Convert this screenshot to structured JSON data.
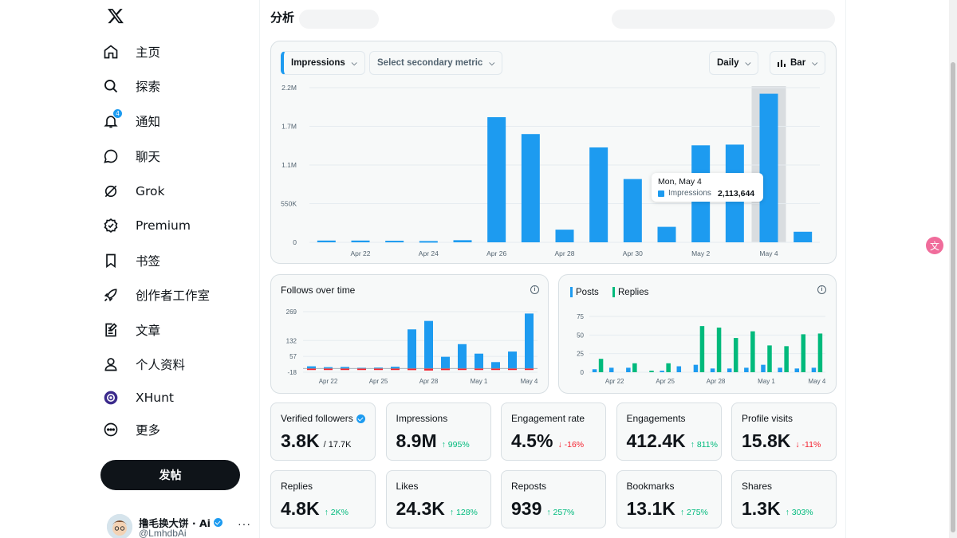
{
  "nav": {
    "items": [
      {
        "label": "主页",
        "icon": "home-icon"
      },
      {
        "label": "探索",
        "icon": "search-icon"
      },
      {
        "label": "通知",
        "icon": "bell-icon",
        "badge": "4"
      },
      {
        "label": "聊天",
        "icon": "chat-icon"
      },
      {
        "label": "Grok",
        "icon": "grok-icon"
      },
      {
        "label": "Premium",
        "icon": "premium-icon"
      },
      {
        "label": "书签",
        "icon": "bookmark-icon"
      },
      {
        "label": "创作者工作室",
        "icon": "rocket-icon"
      },
      {
        "label": "文章",
        "icon": "article-icon"
      },
      {
        "label": "个人资料",
        "icon": "person-icon"
      },
      {
        "label": "XHunt",
        "icon": "xhunt-icon"
      },
      {
        "label": "更多",
        "icon": "more-icon"
      }
    ],
    "post_label": "发帖"
  },
  "account": {
    "name": "撸毛换大饼 · Ai",
    "handle": "@LmhdbAi"
  },
  "page": {
    "title": "分析"
  },
  "controls": {
    "primary_metric": "Impressions",
    "secondary_placeholder": "Select secondary metric",
    "interval": "Daily",
    "chart_type": "Bar"
  },
  "tooltip": {
    "date": "Mon, May 4",
    "label": "Impressions",
    "value": "2,113,644"
  },
  "follows": {
    "title": "Follows over time"
  },
  "posts_replies": {
    "legend_posts": "Posts",
    "legend_replies": "Replies"
  },
  "colors": {
    "blue": "#1d9bf0",
    "green": "#00ba7c",
    "red": "#f4212e"
  },
  "chart_data": [
    {
      "type": "bar",
      "title": "Impressions",
      "x": [
        "Apr 21",
        "Apr 22",
        "Apr 23",
        "Apr 24",
        "Apr 25",
        "Apr 26",
        "Apr 27",
        "Apr 28",
        "Apr 29",
        "Apr 30",
        "May 1",
        "May 2",
        "May 3",
        "May 4",
        "May 5"
      ],
      "values": [
        25000,
        25000,
        22000,
        18000,
        30000,
        1780000,
        1540000,
        180000,
        1350000,
        900000,
        220000,
        1380000,
        1390000,
        2113644,
        150000
      ],
      "tick_labels_x": [
        "Apr 22",
        "Apr 24",
        "Apr 26",
        "Apr 28",
        "Apr 30",
        "May 2",
        "May 4"
      ],
      "tick_labels_y": [
        "0",
        "550K",
        "1.1M",
        "1.7M",
        "2.2M"
      ],
      "ylim": [
        0,
        2200000
      ],
      "highlight": "May 4",
      "grid": true
    },
    {
      "type": "bar",
      "title": "Follows over time",
      "x": [
        "Apr 21",
        "Apr 22",
        "Apr 23",
        "Apr 24",
        "Apr 25",
        "Apr 26",
        "Apr 27",
        "Apr 28",
        "Apr 29",
        "Apr 30",
        "May 1",
        "May 2",
        "May 3",
        "May 4"
      ],
      "series": [
        {
          "name": "gained",
          "values": [
            10,
            6,
            7,
            3,
            4,
            8,
            185,
            225,
            55,
            115,
            70,
            30,
            80,
            260
          ]
        },
        {
          "name": "lost",
          "values": [
            -6,
            -5,
            -5,
            -4,
            -4,
            -5,
            -8,
            -10,
            -8,
            -7,
            -6,
            -5,
            -6,
            -7
          ]
        }
      ],
      "tick_labels_x": [
        "Apr 22",
        "Apr 25",
        "Apr 28",
        "May 1",
        "May 4"
      ],
      "tick_labels_y": [
        "-18",
        "57",
        "132",
        "269"
      ],
      "ylim": [
        -18,
        269
      ]
    },
    {
      "type": "bar",
      "x": [
        "Apr 21",
        "Apr 22",
        "Apr 23",
        "Apr 24",
        "Apr 25",
        "Apr 26",
        "Apr 27",
        "Apr 28",
        "Apr 29",
        "Apr 30",
        "May 1",
        "May 2",
        "May 3",
        "May 4"
      ],
      "series": [
        {
          "name": "Posts",
          "values": [
            4,
            6,
            6,
            0,
            2,
            8,
            10,
            5,
            5,
            6,
            10,
            6,
            5,
            6
          ]
        },
        {
          "name": "Replies",
          "values": [
            18,
            0,
            12,
            2,
            12,
            0,
            62,
            60,
            46,
            55,
            36,
            35,
            51,
            52
          ]
        }
      ],
      "tick_labels_x": [
        "Apr 22",
        "Apr 25",
        "Apr 28",
        "May 1",
        "May 4"
      ],
      "tick_labels_y": [
        "0",
        "25",
        "50",
        "75"
      ],
      "ylim": [
        0,
        75
      ]
    }
  ],
  "metrics": [
    {
      "label": "Verified followers",
      "value": "3.8K",
      "sub": "/ 17.7K",
      "delta": "",
      "dir": "",
      "verified": true
    },
    {
      "label": "Impressions",
      "value": "8.9M",
      "sub": "",
      "delta": "↑ 995%",
      "dir": "up"
    },
    {
      "label": "Engagement rate",
      "value": "4.5%",
      "sub": "",
      "delta": "↓ -16%",
      "dir": "down"
    },
    {
      "label": "Engagements",
      "value": "412.4K",
      "sub": "",
      "delta": "↑ 811%",
      "dir": "up"
    },
    {
      "label": "Profile visits",
      "value": "15.8K",
      "sub": "",
      "delta": "↓ -11%",
      "dir": "down"
    },
    {
      "label": "Replies",
      "value": "4.8K",
      "sub": "",
      "delta": "↑ 2K%",
      "dir": "up"
    },
    {
      "label": "Likes",
      "value": "24.3K",
      "sub": "",
      "delta": "↑ 128%",
      "dir": "up"
    },
    {
      "label": "Reposts",
      "value": "939",
      "sub": "",
      "delta": "↑ 257%",
      "dir": "up"
    },
    {
      "label": "Bookmarks",
      "value": "13.1K",
      "sub": "",
      "delta": "↑ 275%",
      "dir": "up"
    },
    {
      "label": "Shares",
      "value": "1.3K",
      "sub": "",
      "delta": "↑ 303%",
      "dir": "up"
    }
  ]
}
